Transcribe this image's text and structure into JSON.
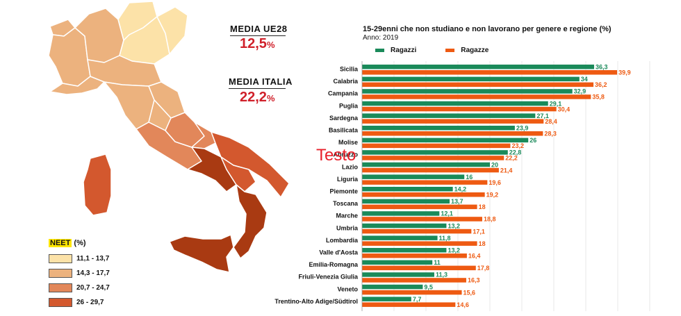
{
  "stats": {
    "eu": {
      "label": "MEDIA UE28",
      "value": "12,5",
      "unit": "%"
    },
    "italy": {
      "label": "MEDIA ITALIA",
      "value": "22,2",
      "unit": "%"
    }
  },
  "legend": {
    "title_highlight": "NEET",
    "title_rest": " (%)",
    "classes": [
      {
        "label": "11,1 - 13,7",
        "color": "#fce2a8"
      },
      {
        "label": "14,3 - 17,7",
        "color": "#ecb27e"
      },
      {
        "label": "20,7 - 24,7",
        "color": "#e2875a"
      },
      {
        "label": "26 - 29,7",
        "color": "#d3582e"
      }
    ]
  },
  "overlay": {
    "text": "Testo"
  },
  "colors": {
    "ragazzi": "#1a8a5a",
    "ragazze": "#ee5a12",
    "map_border": "#ffffff"
  },
  "chart_data": {
    "type": "bar",
    "orientation": "horizontal",
    "title": "15-29enni che non studiano e non lavorano per genere e regione (%)",
    "subtitle": "Anno: 2019",
    "legend_position": "top",
    "xlim": [
      0,
      45
    ],
    "categories": [
      "Sicilia",
      "Calabria",
      "Campania",
      "Puglia",
      "Sardegna",
      "Basilicata",
      "Molise",
      "Abruzzo",
      "Lazio",
      "Liguria",
      "Piemonte",
      "Toscana",
      "Marche",
      "Umbria",
      "Lombardia",
      "Valle d'Aosta",
      "Emilia-Romagna",
      "Friuli-Venezia Giulia",
      "Veneto",
      "Trentino-Alto Adige/Südtirol"
    ],
    "series": [
      {
        "name": "Ragazzi",
        "values": [
          36.3,
          34,
          32.9,
          29.1,
          27.1,
          23.9,
          26,
          22.8,
          20,
          16,
          14.2,
          13.7,
          12.1,
          13.2,
          11.8,
          13.2,
          11,
          11.3,
          9.5,
          7.7
        ],
        "labels": [
          "36,3",
          "34",
          "32,9",
          "29,1",
          "27,1",
          "23,9",
          "26",
          "22,8",
          "20",
          "16",
          "14,2",
          "13,7",
          "12,1",
          "13,2",
          "11,8",
          "13,2",
          "11",
          "11,3",
          "9,5",
          "7,7"
        ]
      },
      {
        "name": "Ragazze",
        "values": [
          39.9,
          36.2,
          35.8,
          30.4,
          28.4,
          28.3,
          23.2,
          22.2,
          21.4,
          19.6,
          19.2,
          18,
          18.8,
          17.1,
          18,
          16.4,
          17.8,
          16.3,
          15.6,
          14.6
        ],
        "labels": [
          "39,9",
          "36,2",
          "35,8",
          "30,4",
          "28,4",
          "28,3",
          "23,2",
          "22,2",
          "21,4",
          "19,6",
          "19,2",
          "18",
          "18,8",
          "17,1",
          "18",
          "16,4",
          "17,8",
          "16,3",
          "15,6",
          "14,6"
        ]
      }
    ]
  }
}
